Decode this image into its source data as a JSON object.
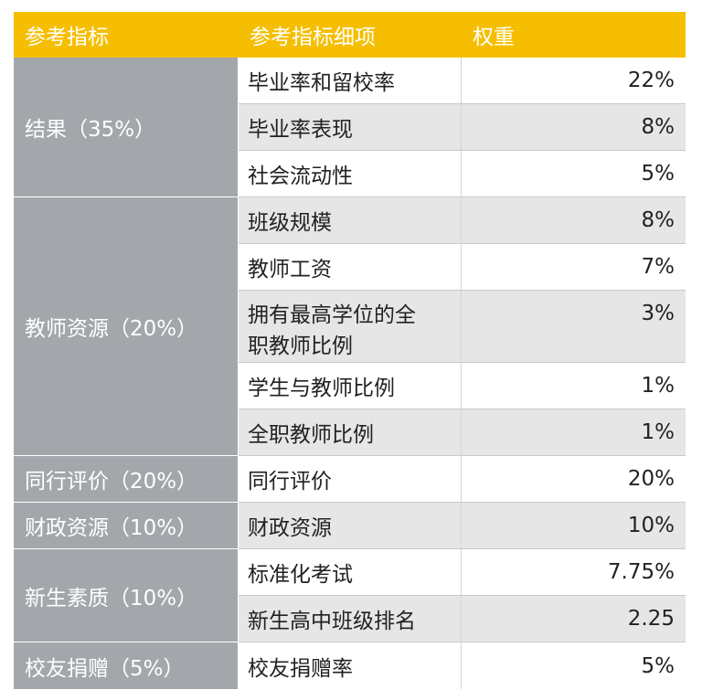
{
  "header": {
    "col1": "参考指标",
    "col2": "参考指标细项",
    "col3": "权重"
  },
  "categories": [
    {
      "label": "结果（35%）"
    },
    {
      "label": "教师资源（20%）"
    },
    {
      "label": "同行评价（20%）"
    },
    {
      "label": "财政资源（10%）"
    },
    {
      "label": "新生素质（10%）"
    },
    {
      "label": "校友捐赠（5%）"
    }
  ],
  "rows": [
    {
      "detail": "毕业率和留校率",
      "weight": "22%"
    },
    {
      "detail": "毕业率表现",
      "weight": "8%"
    },
    {
      "detail": "社会流动性",
      "weight": "5%"
    },
    {
      "detail": "班级规模",
      "weight": "8%"
    },
    {
      "detail": "教师工资",
      "weight": "7%"
    },
    {
      "detail": "拥有最高学位的全职教师比例",
      "weight": "3%"
    },
    {
      "detail": "学生与教师比例",
      "weight": "1%"
    },
    {
      "detail": "全职教师比例",
      "weight": "1%"
    },
    {
      "detail": "同行评价",
      "weight": "20%"
    },
    {
      "detail": "财政资源",
      "weight": "10%"
    },
    {
      "detail": "标准化考试",
      "weight": "7.75%"
    },
    {
      "detail": "新生高中班级排名",
      "weight": "2.25"
    },
    {
      "detail": "校友捐赠率",
      "weight": "5%"
    }
  ]
}
